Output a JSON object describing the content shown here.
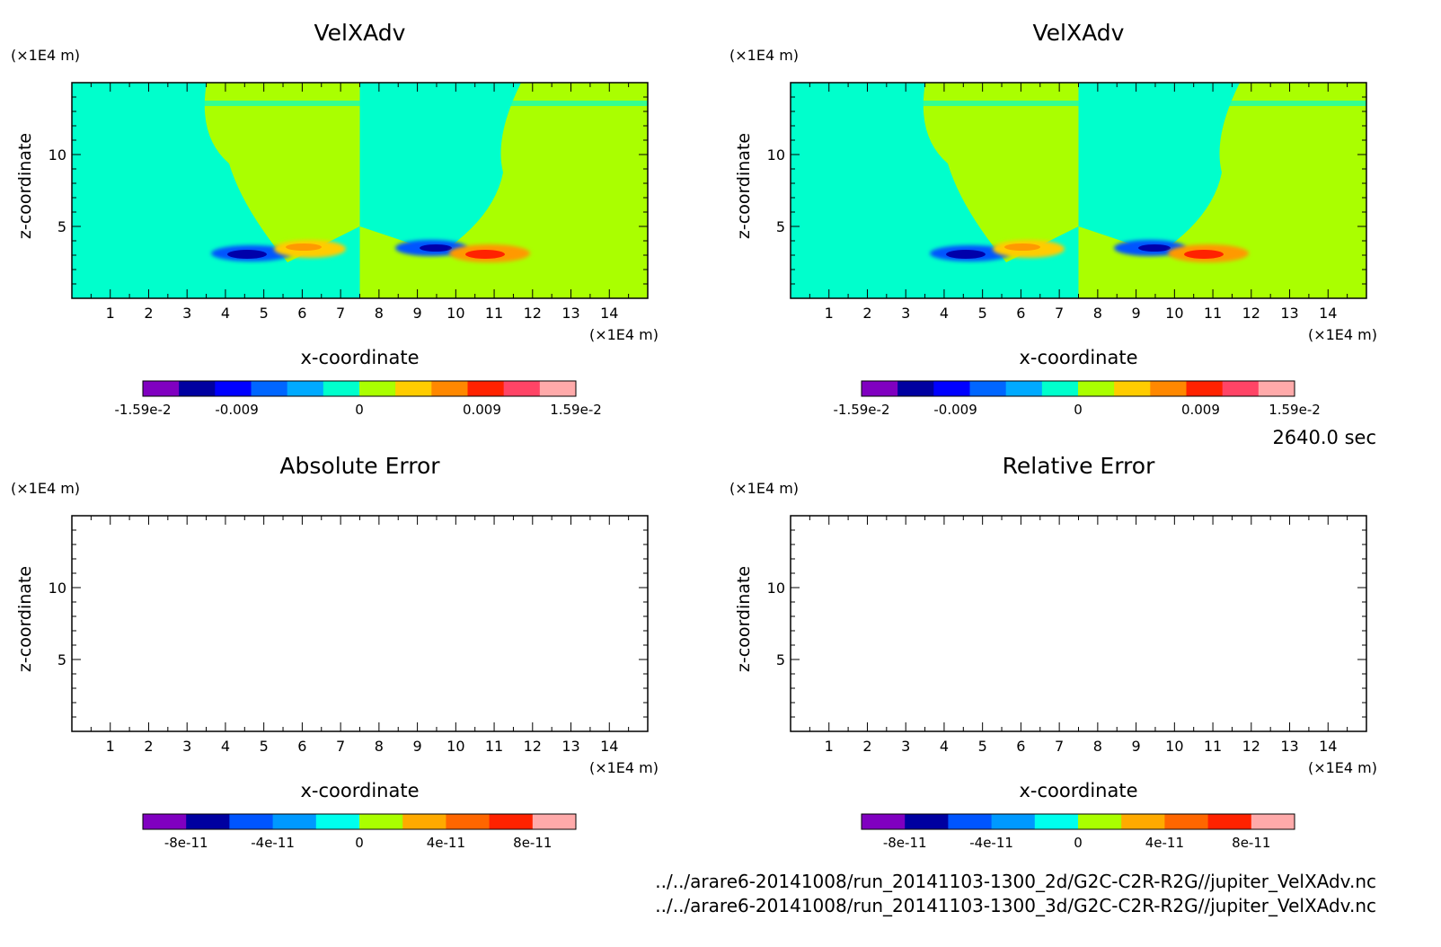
{
  "time_label": "2640.0 sec",
  "files": [
    "../../arare6-20141008/run_20141103-1300_2d/G2C-C2R-R2G//jupiter_VelXAdv.nc",
    "../../arare6-20141008/run_20141103-1300_3d/G2C-C2R-R2G//jupiter_VelXAdv.nc"
  ],
  "colors": {
    "field_cyan": "#00ffcc",
    "field_green": "#aaff00",
    "blue_dark": "#0000aa",
    "blue": "#0055ff",
    "yellow": "#ffcc00",
    "orange": "#ff9900",
    "red": "#ff2200"
  },
  "chart_data": [
    {
      "type": "heatmap",
      "title": "VelXAdv",
      "xlabel": "x-coordinate",
      "ylabel": "z-coordinate",
      "x_unit": "(×1E4 m)",
      "y_unit": "(×1E4 m)",
      "xlim": [
        0,
        15
      ],
      "ylim": [
        0,
        15
      ],
      "x_ticks": [
        "1",
        "2",
        "3",
        "4",
        "5",
        "6",
        "7",
        "8",
        "9",
        "10",
        "11",
        "12",
        "13",
        "14"
      ],
      "y_ticks": [
        "5",
        "10"
      ],
      "colorbar": {
        "labels": [
          "-1.59e-2",
          "-0.009",
          "0",
          "0.009",
          "1.59e-2"
        ],
        "label_values": [
          -0.0159,
          -0.009,
          0,
          0.009,
          0.0159
        ],
        "range": [
          -0.0159,
          0.0159
        ],
        "colors": [
          "#8000c0",
          "#0000a0",
          "#0000ff",
          "#0066ff",
          "#00aaff",
          "#00ffcc",
          "#aaff00",
          "#ffcc00",
          "#ff8800",
          "#ff2200",
          "#ff4466",
          "#ffaaaa"
        ]
      },
      "filled": true
    },
    {
      "type": "heatmap",
      "title": "VelXAdv",
      "xlabel": "x-coordinate",
      "ylabel": "z-coordinate",
      "x_unit": "(×1E4 m)",
      "y_unit": "(×1E4 m)",
      "xlim": [
        0,
        15
      ],
      "ylim": [
        0,
        15
      ],
      "x_ticks": [
        "1",
        "2",
        "3",
        "4",
        "5",
        "6",
        "7",
        "8",
        "9",
        "10",
        "11",
        "12",
        "13",
        "14"
      ],
      "y_ticks": [
        "5",
        "10"
      ],
      "colorbar": {
        "labels": [
          "-1.59e-2",
          "-0.009",
          "0",
          "0.009",
          "1.59e-2"
        ],
        "label_values": [
          -0.0159,
          -0.009,
          0,
          0.009,
          0.0159
        ],
        "range": [
          -0.0159,
          0.0159
        ],
        "colors": [
          "#8000c0",
          "#0000a0",
          "#0000ff",
          "#0066ff",
          "#00aaff",
          "#00ffcc",
          "#aaff00",
          "#ffcc00",
          "#ff8800",
          "#ff2200",
          "#ff4466",
          "#ffaaaa"
        ]
      },
      "filled": true
    },
    {
      "type": "heatmap",
      "title": "Absolute Error",
      "xlabel": "x-coordinate",
      "ylabel": "z-coordinate",
      "x_unit": "(×1E4 m)",
      "y_unit": "(×1E4 m)",
      "xlim": [
        0,
        15
      ],
      "ylim": [
        0,
        15
      ],
      "x_ticks": [
        "1",
        "2",
        "3",
        "4",
        "5",
        "6",
        "7",
        "8",
        "9",
        "10",
        "11",
        "12",
        "13",
        "14"
      ],
      "y_ticks": [
        "5",
        "10"
      ],
      "colorbar": {
        "labels": [
          "-8e-11",
          "-4e-11",
          "0",
          "4e-11",
          "8e-11"
        ],
        "label_values": [
          -8e-11,
          -4e-11,
          0,
          4e-11,
          8e-11
        ],
        "range": [
          -1e-10,
          1e-10
        ],
        "colors": [
          "#8000c0",
          "#0000a0",
          "#0055ff",
          "#0099ff",
          "#00ffee",
          "#aaff00",
          "#ffaa00",
          "#ff6600",
          "#ff2200",
          "#ffaaaa"
        ]
      },
      "filled": false
    },
    {
      "type": "heatmap",
      "title": "Relative Error",
      "xlabel": "x-coordinate",
      "ylabel": "z-coordinate",
      "x_unit": "(×1E4 m)",
      "y_unit": "(×1E4 m)",
      "xlim": [
        0,
        15
      ],
      "ylim": [
        0,
        15
      ],
      "x_ticks": [
        "1",
        "2",
        "3",
        "4",
        "5",
        "6",
        "7",
        "8",
        "9",
        "10",
        "11",
        "12",
        "13",
        "14"
      ],
      "y_ticks": [
        "5",
        "10"
      ],
      "colorbar": {
        "labels": [
          "-8e-11",
          "-4e-11",
          "0",
          "4e-11",
          "8e-11"
        ],
        "label_values": [
          -8e-11,
          -4e-11,
          0,
          4e-11,
          8e-11
        ],
        "range": [
          -1e-10,
          1e-10
        ],
        "colors": [
          "#8000c0",
          "#0000a0",
          "#0055ff",
          "#0099ff",
          "#00ffee",
          "#aaff00",
          "#ffaa00",
          "#ff6600",
          "#ff2200",
          "#ffaaaa"
        ]
      },
      "filled": false
    }
  ]
}
